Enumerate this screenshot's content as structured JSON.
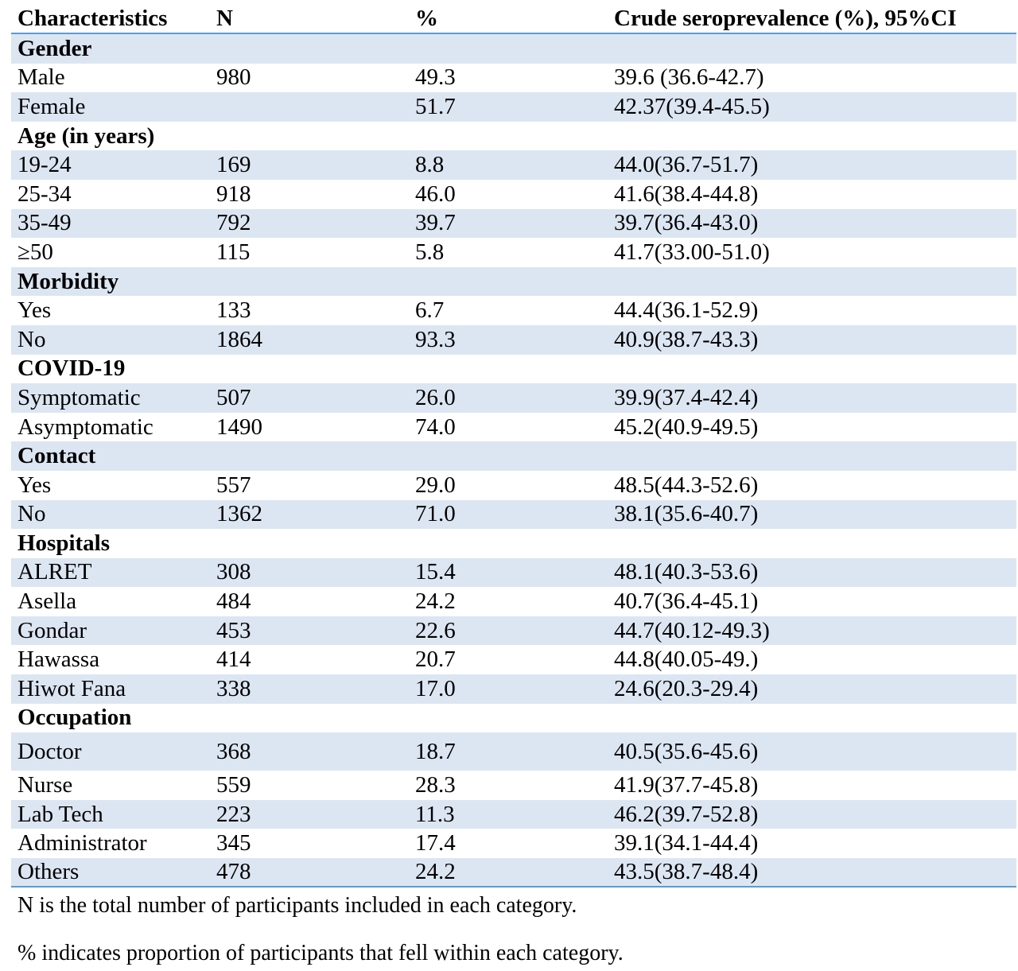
{
  "table": {
    "headers": [
      "Characteristics",
      "N",
      "%",
      "Crude seroprevalence (%), 95%CI"
    ],
    "sections": [
      {
        "title": "Gender",
        "rows": [
          [
            "Male",
            "980",
            "49.3",
            "39.6 (36.6-42.7)"
          ],
          [
            "Female",
            "",
            "51.7",
            "42.37(39.4-45.5)"
          ]
        ]
      },
      {
        "title": "Age (in years)",
        "rows": [
          [
            "19-24",
            "169",
            "8.8",
            "44.0(36.7-51.7)"
          ],
          [
            "25-34",
            "918",
            "46.0",
            "41.6(38.4-44.8)"
          ],
          [
            "35-49",
            "792",
            "39.7",
            "39.7(36.4-43.0)"
          ],
          [
            "≥50",
            "115",
            "5.8",
            "41.7(33.00-51.0)"
          ]
        ]
      },
      {
        "title": "Morbidity",
        "rows": [
          [
            "Yes",
            "133",
            "6.7",
            "44.4(36.1-52.9)"
          ],
          [
            "No",
            "1864",
            "93.3",
            "40.9(38.7-43.3)"
          ]
        ]
      },
      {
        "title": "COVID-19",
        "rows": [
          [
            "Symptomatic",
            "507",
            "26.0",
            "39.9(37.4-42.4)"
          ],
          [
            "Asymptomatic",
            "1490",
            "74.0",
            "45.2(40.9-49.5)"
          ]
        ]
      },
      {
        "title": "Contact",
        "rows": [
          [
            "Yes",
            "557",
            "29.0",
            "48.5(44.3-52.6)"
          ],
          [
            "No",
            "1362",
            "71.0",
            "38.1(35.6-40.7)"
          ]
        ]
      },
      {
        "title": "Hospitals",
        "rows": [
          [
            "ALRET",
            "308",
            "15.4",
            "48.1(40.3-53.6)"
          ],
          [
            "Asella",
            "484",
            "24.2",
            "40.7(36.4-45.1)"
          ],
          [
            "Gondar",
            "453",
            "22.6",
            "44.7(40.12-49.3)"
          ],
          [
            "Hawassa",
            "414",
            "20.7",
            "44.8(40.05-49.)"
          ],
          [
            "Hiwot Fana",
            "338",
            "17.0",
            "24.6(20.3-29.4)"
          ]
        ]
      },
      {
        "title": "Occupation",
        "rows": [
          [
            "Doctor",
            "368",
            "18.7",
            "40.5(35.6-45.6)"
          ],
          [
            "Nurse",
            "559",
            "28.3",
            "41.9(37.7-45.8)"
          ],
          [
            "Lab Tech",
            "223",
            "11.3",
            "46.2(39.7-52.8)"
          ],
          [
            "Administrator",
            "345",
            "17.4",
            "39.1(34.1-44.4)"
          ],
          [
            "Others",
            "478",
            "24.2",
            "43.5(38.7-48.4)"
          ]
        ]
      }
    ],
    "shade_color": "#dce6f2",
    "rule_color": "#5b9bd5"
  },
  "notes": [
    "N is the total number of participants included in each category.",
    "% indicates proportion of participants that fell within each category."
  ]
}
